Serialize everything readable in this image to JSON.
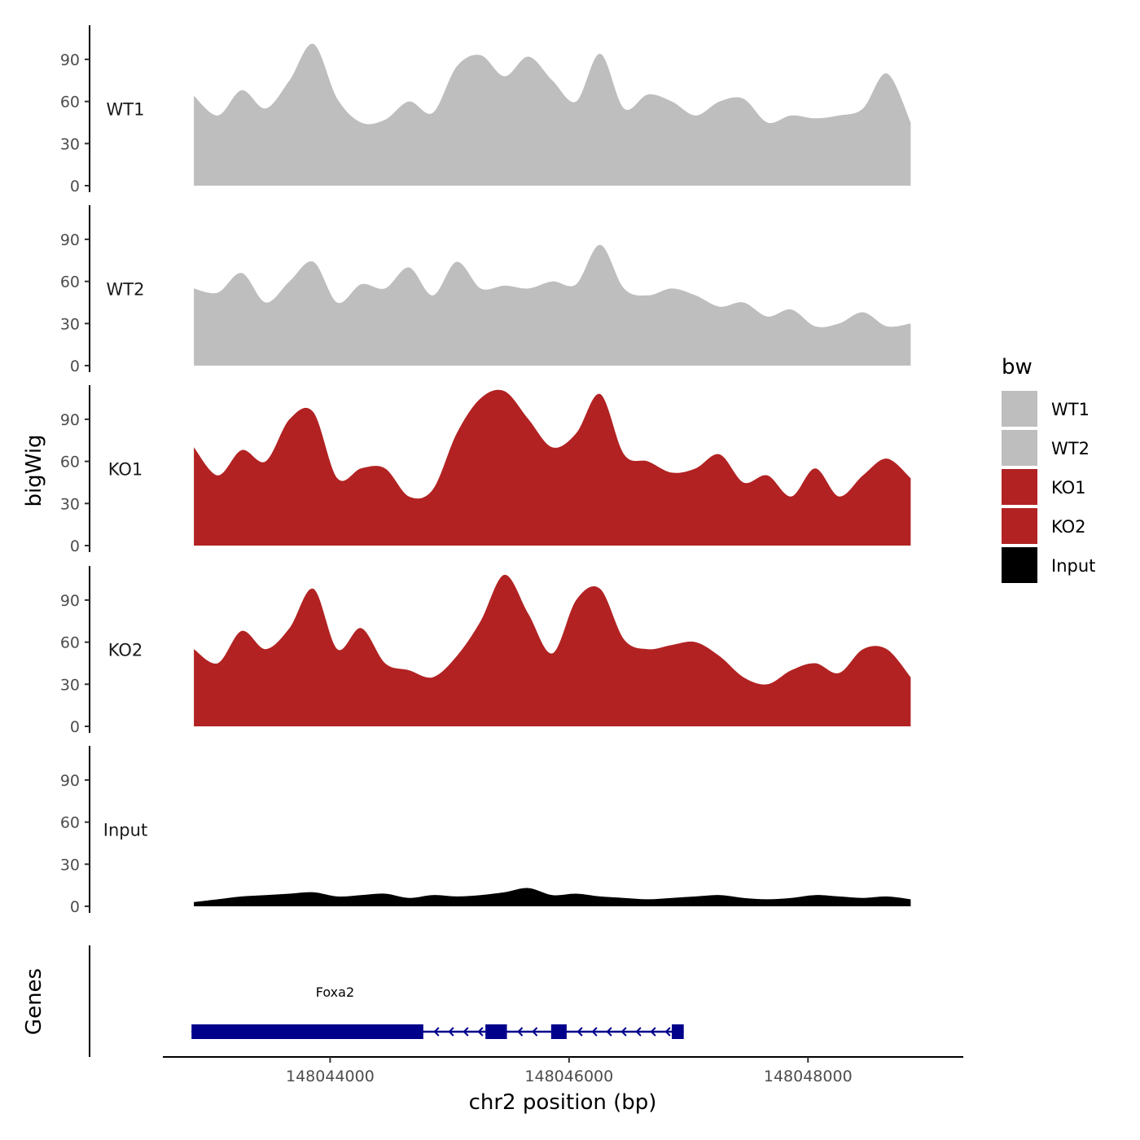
{
  "chart_data": {
    "type": "area",
    "title": "",
    "xlabel": "chr2 position (bp)",
    "ylabel": "bigWig",
    "gene_panel_label": "Genes",
    "x_range": [
      148042600,
      148049300
    ],
    "x_ticks": [
      148044000,
      148046000,
      148048000
    ],
    "x_tick_labels": [
      "148044000",
      "148046000",
      "148048000"
    ],
    "y_range": [
      0,
      112
    ],
    "y_ticks": [
      0,
      30,
      60,
      90
    ],
    "y_tick_labels": [
      "0",
      "30",
      "60",
      "90"
    ],
    "legend": {
      "title": "bw",
      "position": "right",
      "entries": [
        {
          "label": "WT1",
          "color": "#BEBEBE"
        },
        {
          "label": "WT2",
          "color": "#BEBEBE"
        },
        {
          "label": "KO1",
          "color": "#B22222"
        },
        {
          "label": "KO2",
          "color": "#B22222"
        },
        {
          "label": "Input",
          "color": "#000000"
        }
      ]
    },
    "x": [
      148042860,
      148043060,
      148043260,
      148043460,
      148043660,
      148043860,
      148044060,
      148044260,
      148044460,
      148044660,
      148044860,
      148045060,
      148045260,
      148045460,
      148045660,
      148045860,
      148046060,
      148046260,
      148046460,
      148046660,
      148046860,
      148047060,
      148047260,
      148047460,
      148047660,
      148047860,
      148048060,
      148048260,
      148048460,
      148048660,
      148048860
    ],
    "series": [
      {
        "name": "WT1",
        "color": "#BEBEBE",
        "label": "WT1",
        "values": [
          64,
          50,
          68,
          55,
          75,
          101,
          62,
          45,
          47,
          60,
          52,
          85,
          93,
          78,
          92,
          75,
          60,
          94,
          55,
          65,
          60,
          50,
          60,
          62,
          45,
          50,
          48,
          50,
          55,
          80,
          45
        ]
      },
      {
        "name": "WT2",
        "color": "#BEBEBE",
        "label": "WT2",
        "values": [
          55,
          52,
          66,
          45,
          60,
          74,
          45,
          58,
          55,
          70,
          50,
          74,
          55,
          57,
          55,
          60,
          58,
          86,
          55,
          50,
          55,
          50,
          42,
          45,
          35,
          40,
          28,
          30,
          38,
          28,
          30
        ]
      },
      {
        "name": "KO1",
        "color": "#B22222",
        "label": "KO1",
        "values": [
          70,
          50,
          68,
          60,
          90,
          95,
          48,
          55,
          55,
          35,
          40,
          80,
          105,
          110,
          90,
          70,
          80,
          108,
          65,
          60,
          52,
          55,
          65,
          45,
          50,
          35,
          55,
          35,
          50,
          62,
          48
        ]
      },
      {
        "name": "KO2",
        "color": "#B22222",
        "label": "KO2",
        "values": [
          55,
          45,
          68,
          55,
          70,
          98,
          55,
          70,
          45,
          40,
          35,
          50,
          75,
          108,
          80,
          52,
          90,
          98,
          62,
          55,
          58,
          60,
          50,
          35,
          30,
          40,
          45,
          38,
          55,
          55,
          35
        ]
      },
      {
        "name": "Input",
        "color": "#000000",
        "label": "Input",
        "values": [
          3,
          5,
          7,
          8,
          9,
          10,
          7,
          8,
          9,
          6,
          8,
          7,
          8,
          10,
          13,
          8,
          9,
          7,
          6,
          5,
          6,
          7,
          8,
          6,
          5,
          6,
          8,
          7,
          6,
          7,
          5
        ]
      }
    ],
    "gene_track": {
      "gene_name": "Foxa2",
      "strand": "-",
      "start": 148042840,
      "end": 148046960,
      "exons": [
        [
          148042840,
          148044780
        ],
        [
          148045300,
          148045480
        ],
        [
          148045850,
          148045980
        ],
        [
          148046860,
          148046960
        ]
      ]
    }
  }
}
